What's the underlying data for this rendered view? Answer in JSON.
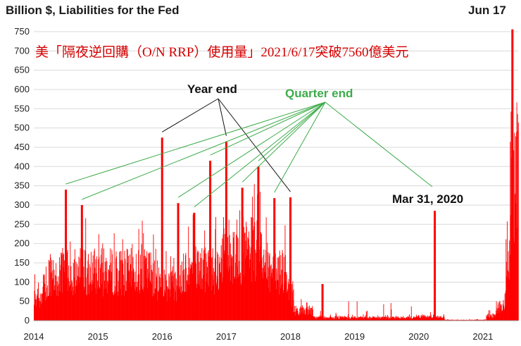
{
  "chart_data": {
    "type": "bar",
    "title": "Billion $, Liabilities for the Fed",
    "subtitle": "美「隔夜逆回購（O/N RRP）使用量」2021/6/17突破7560億美元",
    "ylim": [
      0,
      770
    ],
    "xlim": [
      2014.0,
      2021.55
    ],
    "yticks": [
      0,
      50,
      100,
      150,
      200,
      250,
      300,
      350,
      400,
      450,
      500,
      550,
      600,
      650,
      700,
      750
    ],
    "xticks": [
      2014,
      2015,
      2016,
      2017,
      2018,
      2019,
      2020,
      2021
    ],
    "grid": "horizontal",
    "bar_color": "#ff0000",
    "spikes": [
      {
        "x": 2014.5,
        "value": 340
      },
      {
        "x": 2014.75,
        "value": 300
      },
      {
        "x": 2016.0,
        "value": 475
      },
      {
        "x": 2016.25,
        "value": 305
      },
      {
        "x": 2016.5,
        "value": 280
      },
      {
        "x": 2016.75,
        "value": 415
      },
      {
        "x": 2017.0,
        "value": 465
      },
      {
        "x": 2017.25,
        "value": 345
      },
      {
        "x": 2017.5,
        "value": 400
      },
      {
        "x": 2017.75,
        "value": 318
      },
      {
        "x": 2018.0,
        "value": 320
      },
      {
        "x": 2018.5,
        "value": 95
      },
      {
        "x": 2020.25,
        "value": 285
      },
      {
        "x": 2021.46,
        "value": 756
      }
    ],
    "annotations": {
      "year_end": "Year end",
      "quarter_end": "Quarter end",
      "mar2020": "Mar 31, 2020",
      "jun17": "Jun 17"
    },
    "colors": {
      "bars": "#ff0000",
      "year_end_lines": "#111111",
      "quarter_end_lines": "#3cab4a",
      "subtitle": "#d40000",
      "grid": "#d9d9d9"
    }
  }
}
